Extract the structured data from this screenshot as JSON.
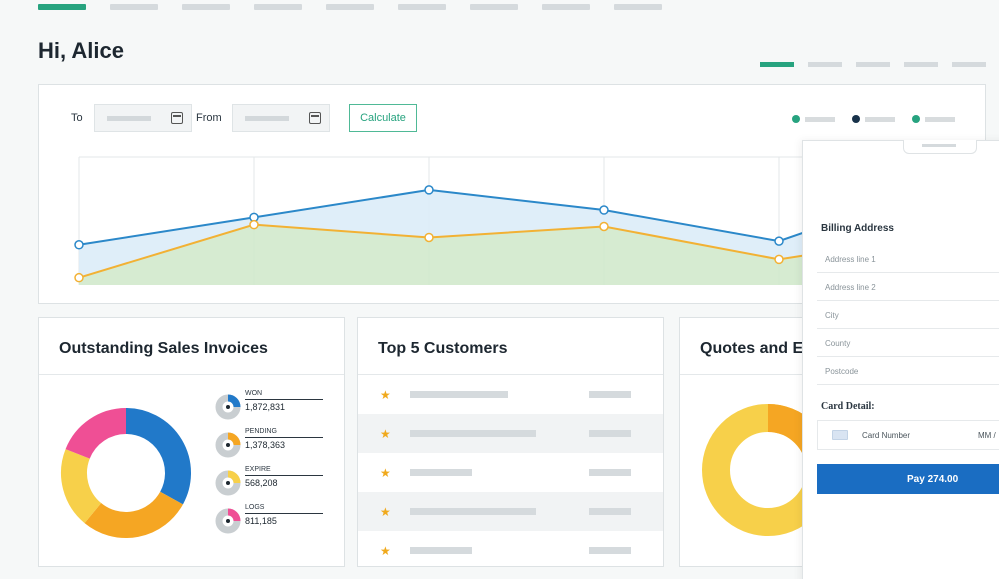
{
  "greeting": "Hi, Alice",
  "colors": {
    "accent": "#27a37f",
    "series_orange": "#f2b134",
    "series_blue": "#2b88c9",
    "area_green": "#cfe7c9",
    "area_blue": "#dcecf8",
    "pay_blue": "#1a6dc2",
    "pink": "#ef4f95",
    "donut_yellow": "#f7d04a",
    "donut_orange": "#f5a623",
    "donut_blue": "#2179c9"
  },
  "filters": {
    "to_label": "To",
    "from_label": "From",
    "calculate_label": "Calculate"
  },
  "legend_colors": [
    "#27a37f",
    "#18324a",
    "#27a37f"
  ],
  "chart_data": {
    "type": "line",
    "x": [
      0,
      1,
      2,
      3,
      4,
      5
    ],
    "series": [
      {
        "values": [
          22,
          37,
          52,
          41,
          24,
          57
        ]
      },
      {
        "values": [
          4,
          33,
          26,
          32,
          14,
          29
        ]
      }
    ],
    "ylim": [
      0,
      70
    ]
  },
  "panels": {
    "invoices": {
      "title": "Outstanding Sales Invoices",
      "donut": [
        {
          "value": 33,
          "color": "#2179c9"
        },
        {
          "value": 28,
          "color": "#f5a623"
        },
        {
          "value": 20,
          "color": "#f7d04a"
        },
        {
          "value": 19,
          "color": "#ef4f95"
        }
      ],
      "stats": [
        {
          "label": "WON",
          "value": "1,872,831",
          "color": "#2179c9"
        },
        {
          "label": "PENDING",
          "value": "1,378,363",
          "color": "#f5a623"
        },
        {
          "label": "EXPIRE",
          "value": "568,208",
          "color": "#f7d04a"
        },
        {
          "label": "LOGS",
          "value": "811,185",
          "color": "#ef4f95"
        }
      ]
    },
    "customers": {
      "title": "Top 5 Customers",
      "rows": [
        1,
        2,
        3,
        4,
        5
      ]
    },
    "quotes": {
      "title": "Quotes and Es"
    }
  },
  "payment": {
    "billing_title": "Billing Address",
    "address_fields": [
      "Address line 1",
      "Address line 2",
      "City",
      "County",
      "Postcode"
    ],
    "card_title": "Card Detail:",
    "card_number_placeholder": "Card Number",
    "expiry_placeholder": "MM /",
    "pay_label": "Pay 274.00"
  }
}
